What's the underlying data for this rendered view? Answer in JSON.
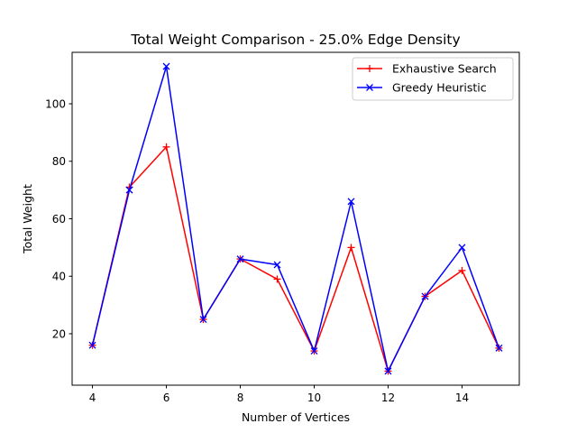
{
  "chart_data": {
    "type": "line",
    "title": "Total Weight Comparison - 25.0% Edge Density",
    "xlabel": "Number of Vertices",
    "ylabel": "Total Weight",
    "x": [
      4,
      5,
      6,
      7,
      8,
      9,
      10,
      11,
      12,
      13,
      14,
      15
    ],
    "xlim": [
      3.45,
      15.55
    ],
    "ylim": [
      2.1,
      117.9
    ],
    "xticks": [
      4,
      6,
      8,
      10,
      12,
      14
    ],
    "yticks": [
      20,
      40,
      60,
      80,
      100
    ],
    "grid": false,
    "legend_position": "top-right",
    "series": [
      {
        "name": "Exhaustive Search",
        "color": "#ff0000",
        "marker": "plus",
        "values": [
          16,
          71,
          85,
          25,
          46,
          39,
          14,
          50,
          7,
          33,
          42,
          15
        ]
      },
      {
        "name": "Greedy Heuristic",
        "color": "#0000ff",
        "marker": "x",
        "values": [
          16,
          70,
          113,
          25,
          46,
          44,
          14,
          66,
          7,
          33,
          50,
          15
        ]
      }
    ]
  }
}
